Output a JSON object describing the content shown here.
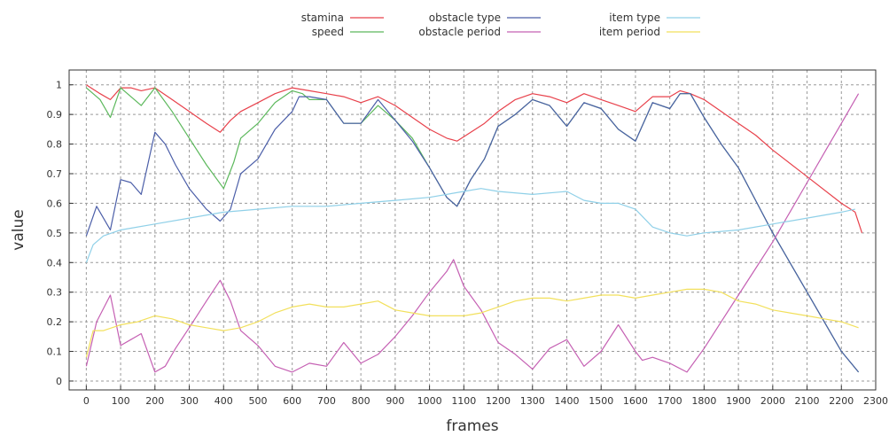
{
  "chart_data": {
    "type": "line",
    "xlabel": "frames",
    "ylabel": "value",
    "xlim": [
      -50,
      2300
    ],
    "ylim": [
      -0.03,
      1.05
    ],
    "xticks": [
      0,
      100,
      200,
      300,
      400,
      500,
      600,
      700,
      800,
      900,
      1000,
      1100,
      1200,
      1300,
      1400,
      1500,
      1600,
      1700,
      1800,
      1900,
      2000,
      2100,
      2200,
      2300
    ],
    "yticks": [
      0,
      0.1,
      0.2,
      0.3,
      0.4,
      0.5,
      0.6,
      0.7,
      0.8,
      0.9,
      1
    ],
    "grid": true,
    "legend_position": "top",
    "series": [
      {
        "name": "stamina",
        "color": "#e8414b",
        "x": [
          0,
          40,
          70,
          100,
          130,
          160,
          200,
          250,
          300,
          350,
          390,
          420,
          450,
          500,
          550,
          600,
          650,
          700,
          750,
          800,
          850,
          900,
          950,
          1000,
          1050,
          1080,
          1120,
          1160,
          1200,
          1250,
          1300,
          1350,
          1400,
          1450,
          1500,
          1550,
          1600,
          1650,
          1700,
          1730,
          1760,
          1800,
          1850,
          1900,
          1950,
          2000,
          2100,
          2200,
          2240,
          2260
        ],
        "y": [
          1.0,
          0.97,
          0.95,
          0.99,
          0.99,
          0.98,
          0.99,
          0.95,
          0.91,
          0.87,
          0.84,
          0.88,
          0.91,
          0.94,
          0.97,
          0.99,
          0.98,
          0.97,
          0.96,
          0.94,
          0.96,
          0.93,
          0.89,
          0.85,
          0.82,
          0.81,
          0.84,
          0.87,
          0.91,
          0.95,
          0.97,
          0.96,
          0.94,
          0.97,
          0.95,
          0.93,
          0.91,
          0.96,
          0.96,
          0.98,
          0.97,
          0.95,
          0.91,
          0.87,
          0.83,
          0.78,
          0.69,
          0.6,
          0.57,
          0.5
        ]
      },
      {
        "name": "speed",
        "color": "#5cb85c",
        "x": [
          0,
          40,
          70,
          100,
          130,
          160,
          200,
          250,
          300,
          350,
          400,
          430,
          450,
          500,
          550,
          600,
          630,
          650,
          700,
          750,
          800,
          850,
          900,
          950,
          1000,
          1050,
          1080,
          1120,
          1160,
          1200,
          1250,
          1300,
          1350,
          1400,
          1450,
          1500,
          1550,
          1600,
          1650,
          1700,
          1730,
          1760,
          1800,
          1850,
          1900,
          1950,
          2000,
          2050,
          2100,
          2150,
          2200,
          2250
        ],
        "y": [
          0.99,
          0.95,
          0.89,
          0.99,
          0.96,
          0.93,
          0.99,
          0.91,
          0.82,
          0.73,
          0.65,
          0.74,
          0.82,
          0.87,
          0.94,
          0.98,
          0.97,
          0.95,
          0.95,
          0.87,
          0.87,
          0.93,
          0.88,
          0.82,
          0.72,
          0.62,
          0.59,
          0.68,
          0.75,
          0.86,
          0.9,
          0.95,
          0.93,
          0.86,
          0.94,
          0.92,
          0.85,
          0.81,
          0.94,
          0.92,
          0.97,
          0.97,
          0.89,
          0.8,
          0.72,
          0.61,
          0.5,
          0.4,
          0.3,
          0.2,
          0.1,
          0.03
        ]
      },
      {
        "name": "obstacle type",
        "color": "#4b5ea8",
        "x": [
          0,
          30,
          70,
          100,
          130,
          160,
          200,
          230,
          260,
          300,
          350,
          390,
          420,
          450,
          500,
          550,
          600,
          620,
          650,
          700,
          750,
          800,
          850,
          900,
          950,
          1000,
          1050,
          1080,
          1120,
          1160,
          1200,
          1250,
          1300,
          1350,
          1400,
          1450,
          1500,
          1550,
          1600,
          1650,
          1700,
          1730,
          1760,
          1800,
          1850,
          1900,
          1950,
          2000,
          2050,
          2100,
          2150,
          2200,
          2250
        ],
        "y": [
          0.49,
          0.59,
          0.51,
          0.68,
          0.67,
          0.63,
          0.84,
          0.8,
          0.73,
          0.65,
          0.58,
          0.54,
          0.58,
          0.7,
          0.75,
          0.85,
          0.91,
          0.96,
          0.96,
          0.95,
          0.87,
          0.87,
          0.95,
          0.88,
          0.81,
          0.72,
          0.62,
          0.59,
          0.68,
          0.75,
          0.86,
          0.9,
          0.95,
          0.93,
          0.86,
          0.94,
          0.92,
          0.85,
          0.81,
          0.94,
          0.92,
          0.97,
          0.97,
          0.89,
          0.8,
          0.72,
          0.61,
          0.5,
          0.4,
          0.3,
          0.2,
          0.1,
          0.03
        ]
      },
      {
        "name": "obstacle period",
        "color": "#c560b3",
        "x": [
          0,
          30,
          70,
          100,
          130,
          160,
          200,
          230,
          260,
          300,
          350,
          390,
          420,
          450,
          500,
          550,
          600,
          650,
          700,
          750,
          800,
          850,
          900,
          950,
          1000,
          1050,
          1070,
          1100,
          1150,
          1200,
          1250,
          1300,
          1350,
          1400,
          1450,
          1500,
          1550,
          1600,
          1620,
          1650,
          1700,
          1750,
          1800,
          1850,
          1900,
          1950,
          2000,
          2050,
          2100,
          2150,
          2200,
          2250
        ],
        "y": [
          0.05,
          0.2,
          0.29,
          0.12,
          0.14,
          0.16,
          0.03,
          0.05,
          0.11,
          0.18,
          0.27,
          0.34,
          0.27,
          0.17,
          0.12,
          0.05,
          0.03,
          0.06,
          0.05,
          0.13,
          0.06,
          0.09,
          0.15,
          0.22,
          0.3,
          0.37,
          0.41,
          0.32,
          0.24,
          0.13,
          0.09,
          0.04,
          0.11,
          0.14,
          0.05,
          0.1,
          0.19,
          0.1,
          0.07,
          0.08,
          0.06,
          0.03,
          0.11,
          0.2,
          0.29,
          0.38,
          0.47,
          0.57,
          0.67,
          0.77,
          0.87,
          0.97
        ]
      },
      {
        "name": "item type",
        "color": "#8fd0e8",
        "x": [
          0,
          20,
          50,
          100,
          200,
          300,
          400,
          500,
          600,
          700,
          800,
          900,
          1000,
          1100,
          1150,
          1200,
          1300,
          1400,
          1450,
          1500,
          1550,
          1600,
          1650,
          1700,
          1750,
          1800,
          1900,
          2000,
          2100,
          2200,
          2240
        ],
        "y": [
          0.4,
          0.46,
          0.49,
          0.51,
          0.53,
          0.55,
          0.57,
          0.58,
          0.59,
          0.59,
          0.6,
          0.61,
          0.62,
          0.64,
          0.65,
          0.64,
          0.63,
          0.64,
          0.61,
          0.6,
          0.6,
          0.58,
          0.52,
          0.5,
          0.49,
          0.5,
          0.51,
          0.53,
          0.55,
          0.57,
          0.58
        ]
      },
      {
        "name": "item period",
        "color": "#f2e05c",
        "x": [
          0,
          20,
          50,
          100,
          150,
          200,
          250,
          300,
          350,
          400,
          450,
          500,
          550,
          600,
          650,
          700,
          750,
          800,
          850,
          900,
          950,
          1000,
          1050,
          1100,
          1150,
          1200,
          1250,
          1300,
          1350,
          1400,
          1450,
          1500,
          1550,
          1600,
          1650,
          1700,
          1750,
          1800,
          1850,
          1900,
          1950,
          2000,
          2050,
          2100,
          2150,
          2200,
          2250
        ],
        "y": [
          0.08,
          0.17,
          0.17,
          0.19,
          0.2,
          0.22,
          0.21,
          0.19,
          0.18,
          0.17,
          0.18,
          0.2,
          0.23,
          0.25,
          0.26,
          0.25,
          0.25,
          0.26,
          0.27,
          0.24,
          0.23,
          0.22,
          0.22,
          0.22,
          0.23,
          0.25,
          0.27,
          0.28,
          0.28,
          0.27,
          0.28,
          0.29,
          0.29,
          0.28,
          0.29,
          0.3,
          0.31,
          0.31,
          0.3,
          0.27,
          0.26,
          0.24,
          0.23,
          0.22,
          0.21,
          0.2,
          0.18
        ]
      }
    ]
  }
}
